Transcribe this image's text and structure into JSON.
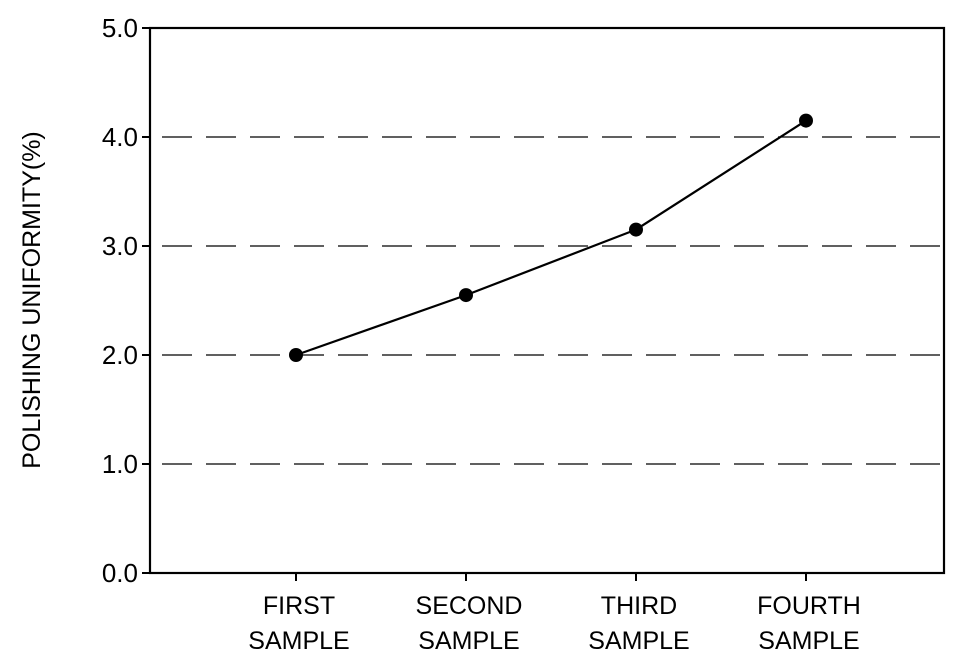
{
  "chart_data": {
    "type": "line",
    "title": "",
    "xlabel": "",
    "ylabel": "POLISHING UNIFORMITY(%)",
    "ylim": [
      0.0,
      5.0
    ],
    "y_ticks": [
      "0.0",
      "1.0",
      "2.0",
      "3.0",
      "4.0",
      "5.0"
    ],
    "grid": "horizontal dashed",
    "categories": [
      [
        "FIRST",
        "SAMPLE"
      ],
      [
        "SECOND",
        "SAMPLE"
      ],
      [
        "THIRD",
        "SAMPLE"
      ],
      [
        "FOURTH",
        "SAMPLE"
      ]
    ],
    "series": [
      {
        "values": [
          2.0,
          2.55,
          3.15,
          4.15
        ]
      }
    ],
    "colors": {
      "line": "#000000",
      "marker": "#000000",
      "background": "#ffffff"
    }
  }
}
